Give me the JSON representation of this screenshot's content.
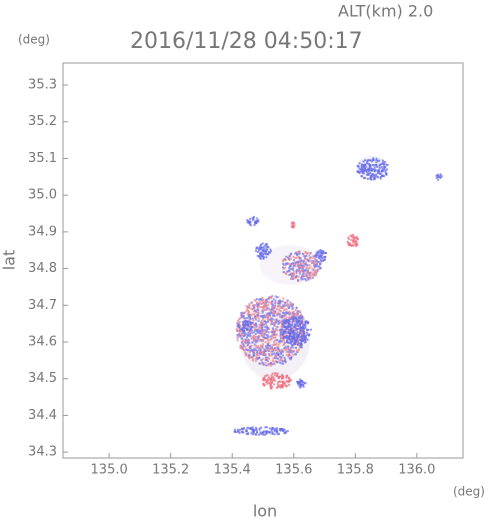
{
  "chart_data": {
    "type": "map",
    "title": "2016/11/28 04:50:17",
    "subtitle": "ALT(km) 2.0",
    "x_label": "lon",
    "x_unit": "(deg)",
    "y_label": "lat",
    "y_unit": "(deg)",
    "xlim": [
      134.85,
      136.15
    ],
    "xticks": [
      {
        "value": 135,
        "label": "135.0"
      },
      135.2,
      135.4,
      135.6,
      135.8,
      {
        "value": 136,
        "label": "136.0"
      }
    ],
    "ylim": [
      34.284,
      35.36
    ],
    "yticks": [
      34.3,
      34.4,
      34.5,
      34.6,
      34.7,
      34.8,
      34.9,
      {
        "value": 35,
        "label": "35.0"
      },
      35.1,
      35.2,
      35.3
    ]
  }
}
